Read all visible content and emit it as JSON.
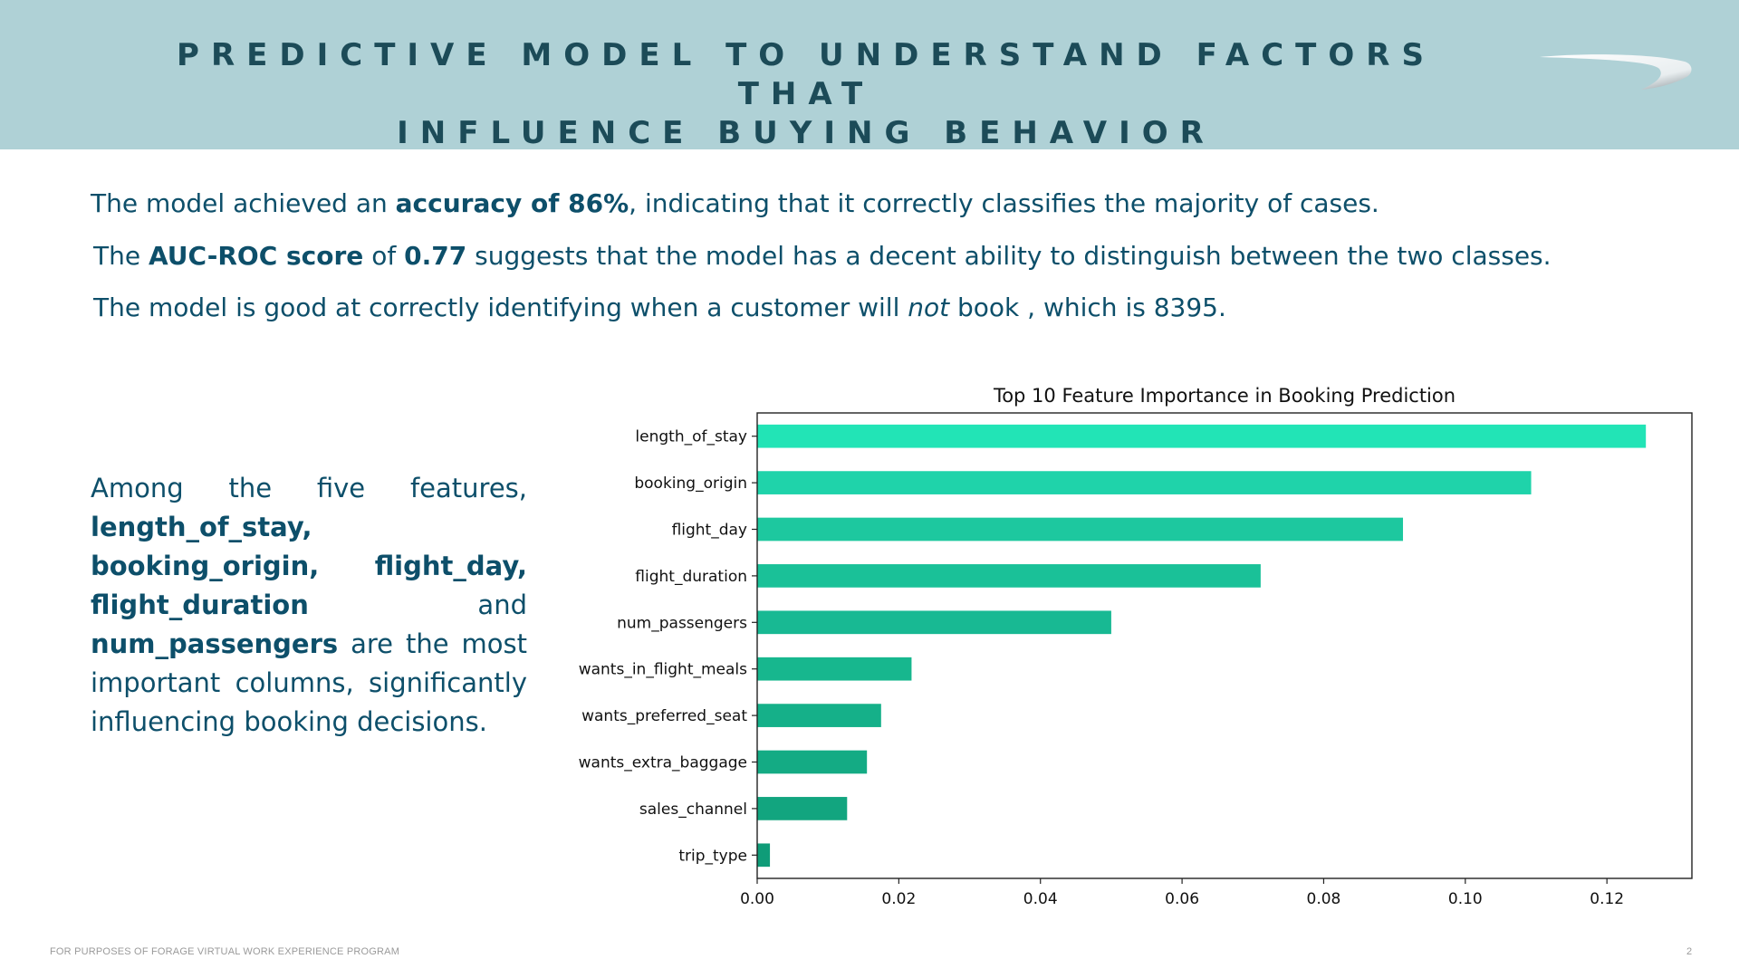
{
  "header": {
    "title_line1": "PREDICTIVE MODEL TO UNDERSTAND FACTORS THAT",
    "title_line2": "INFLUENCE BUYING BEHAVIOR",
    "bg_color": "#afd1d6",
    "logo_icon": "speedmarque-logo-icon"
  },
  "statements": {
    "s1_pre": "The model achieved an ",
    "s1_bold": "accuracy of 86%",
    "s1_post": ", indicating that it correctly classifies the majority of cases.",
    "s2_pre": "The ",
    "s2_bold1": "AUC-ROC score",
    "s2_mid": " of ",
    "s2_bold2": "0.77",
    "s2_post": " suggests that the model has a decent ability to distinguish between the two classes.",
    "s3_pre": "The model is good at correctly identifying when a customer will ",
    "s3_italic": "not",
    "s3_post": " book , which is  8395."
  },
  "side_text": {
    "intro": "Among the five features, ",
    "f1": "length_of_stay,",
    "f2": "booking_origin,",
    "f3": "flight_day,",
    "f4": "flight_duration",
    "and": " and ",
    "f5": "num_passengers",
    "outro": " are the most important columns, significantly influencing booking decisions."
  },
  "chart_data": {
    "type": "bar",
    "orientation": "horizontal",
    "title": "Top 10 Feature Importance in Booking Prediction",
    "categories": [
      "length_of_stay",
      "booking_origin",
      "flight_day",
      "flight_duration",
      "num_passengers",
      "wants_in_flight_meals",
      "wants_preferred_seat",
      "wants_extra_baggage",
      "sales_channel",
      "trip_type"
    ],
    "values": [
      0.1255,
      0.1093,
      0.0912,
      0.0711,
      0.05,
      0.0218,
      0.0175,
      0.0155,
      0.0127,
      0.0018
    ],
    "xlim": [
      0,
      0.132
    ],
    "xticks": [
      "0.00",
      "0.02",
      "0.04",
      "0.06",
      "0.08",
      "0.10",
      "0.12"
    ],
    "xtick_values": [
      0,
      0.02,
      0.04,
      0.06,
      0.08,
      0.1,
      0.12
    ],
    "grid": false,
    "bar_colors": [
      "#22e4b6",
      "#1fd3aa",
      "#1dc89f",
      "#1ac198",
      "#18b993",
      "#17b78e",
      "#15b089",
      "#14ab84",
      "#12a57f",
      "#0f9c78"
    ]
  },
  "footer": {
    "text": "FOR PURPOSES OF FORAGE VIRTUAL WORK EXPERIENCE PROGRAM",
    "page_number": "2"
  }
}
